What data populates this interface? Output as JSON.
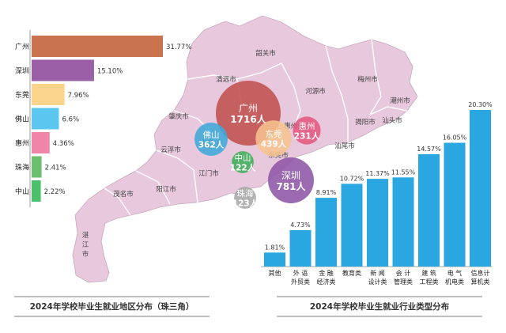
{
  "colors": {
    "map_fill": "#e8c8dc",
    "map_stroke": "#ffffff",
    "region_bar_colors": [
      "#c9734f",
      "#9b5fa8",
      "#f9d48a",
      "#5bc6ef",
      "#ef85a8",
      "#6bbf6d",
      "#4cbf6b"
    ],
    "industry_bar": "#2aa7e0",
    "caption_rule": "#555555"
  },
  "regional_chart": {
    "caption": "2024年学校毕业生就业地区分布（珠三角）"
  },
  "industry_chart": {
    "caption": "2024年学校毕业生就业行业类型分布"
  },
  "chart_data": [
    {
      "type": "bar",
      "orientation": "horizontal",
      "categories": [
        "广州",
        "深圳",
        "东莞",
        "佛山",
        "惠州",
        "珠海",
        "中山"
      ],
      "values": [
        31.77,
        15.1,
        7.96,
        6.6,
        4.36,
        2.41,
        2.22
      ],
      "value_labels": [
        "31.77%",
        "15.10%",
        "7.96%",
        "6.6%",
        "4.36%",
        "2.41%",
        "2.22%"
      ],
      "title": "2024年学校毕业生就业地区分布（珠三角）",
      "xlim": [
        0,
        35
      ]
    },
    {
      "type": "bar",
      "categories": [
        [
          "其他"
        ],
        [
          "外 语",
          "外贸类"
        ],
        [
          "金 融",
          "经济类"
        ],
        [
          "教育类"
        ],
        [
          "新 闻",
          "设计类"
        ],
        [
          "会 计",
          "管理类"
        ],
        [
          "建 筑",
          "工程类"
        ],
        [
          "电 气",
          "机电类"
        ],
        [
          "信息计",
          "算机类"
        ]
      ],
      "values": [
        1.81,
        4.73,
        8.91,
        10.72,
        11.37,
        11.55,
        14.57,
        16.05,
        20.3
      ],
      "value_labels": [
        "1.81%",
        "4.73%",
        "8.91%",
        "10.72%",
        "11.37%",
        "11.55%",
        "14.57%",
        "16.05%",
        "20.30%"
      ],
      "title": "2024年学校毕业生就业行业类型分布",
      "ylim": [
        0,
        21
      ]
    },
    {
      "type": "bubble-map",
      "region": "广东省",
      "bubbles": [
        {
          "name": "广州",
          "label": "1716人",
          "count": 1716,
          "color": "#c0504d"
        },
        {
          "name": "佛山",
          "label": "362人",
          "count": 362,
          "color": "#3fa9d8"
        },
        {
          "name": "东莞",
          "label": "439人",
          "count": 439,
          "color": "#f6c38f"
        },
        {
          "name": "惠州",
          "label": "231人",
          "count": 231,
          "color": "#e4577f"
        },
        {
          "name": "中山",
          "label": "122人",
          "count": 122,
          "color": "#3fae5b"
        },
        {
          "name": "深圳",
          "label": "781人",
          "count": 781,
          "color": "#8e55a6"
        },
        {
          "name": "珠海",
          "label": "123人",
          "count": 123,
          "color": "#a8a8a8"
        }
      ],
      "city_labels": [
        "韶关市",
        "清远市",
        "河源市",
        "梅州市",
        "潮州市",
        "汕头市",
        "揭阳市",
        "汕尾市",
        "肇庆市",
        "云浮市",
        "江门市",
        "阳江市",
        "茂名市",
        "湛江市",
        "山市",
        "惠州市",
        "东莞市"
      ]
    }
  ]
}
